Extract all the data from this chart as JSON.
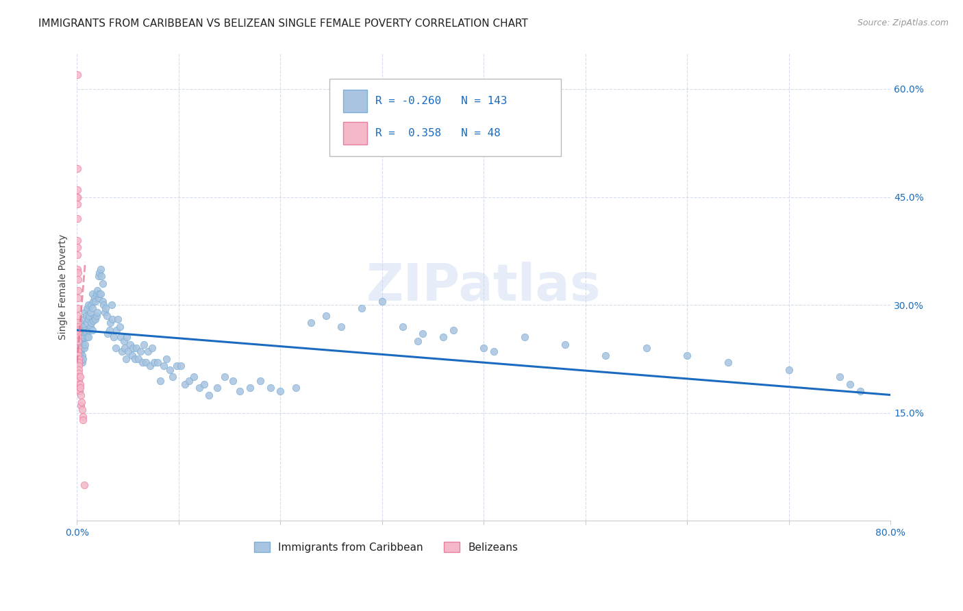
{
  "title": "IMMIGRANTS FROM CARIBBEAN VS BELIZEAN SINGLE FEMALE POVERTY CORRELATION CHART",
  "source": "Source: ZipAtlas.com",
  "ylabel": "Single Female Poverty",
  "legend_label1": "Immigrants from Caribbean",
  "legend_label2": "Belizeans",
  "watermark": "ZIPatlas",
  "r_blue": -0.26,
  "n_blue": 143,
  "r_pink": 0.358,
  "n_pink": 48,
  "blue_scatter_x": [
    0.001,
    0.001,
    0.002,
    0.002,
    0.002,
    0.003,
    0.003,
    0.003,
    0.004,
    0.004,
    0.004,
    0.004,
    0.005,
    0.005,
    0.005,
    0.005,
    0.005,
    0.006,
    0.006,
    0.006,
    0.006,
    0.007,
    0.007,
    0.007,
    0.008,
    0.008,
    0.008,
    0.009,
    0.009,
    0.01,
    0.01,
    0.01,
    0.011,
    0.011,
    0.011,
    0.012,
    0.012,
    0.013,
    0.013,
    0.014,
    0.014,
    0.015,
    0.015,
    0.015,
    0.016,
    0.016,
    0.017,
    0.017,
    0.018,
    0.018,
    0.019,
    0.019,
    0.02,
    0.02,
    0.021,
    0.021,
    0.022,
    0.022,
    0.023,
    0.023,
    0.024,
    0.025,
    0.025,
    0.026,
    0.027,
    0.028,
    0.029,
    0.03,
    0.032,
    0.033,
    0.034,
    0.035,
    0.036,
    0.038,
    0.039,
    0.04,
    0.042,
    0.043,
    0.044,
    0.046,
    0.047,
    0.048,
    0.049,
    0.05,
    0.052,
    0.054,
    0.055,
    0.057,
    0.058,
    0.06,
    0.062,
    0.064,
    0.066,
    0.068,
    0.07,
    0.072,
    0.074,
    0.076,
    0.079,
    0.082,
    0.085,
    0.088,
    0.091,
    0.094,
    0.098,
    0.102,
    0.106,
    0.11,
    0.115,
    0.12,
    0.125,
    0.13,
    0.138,
    0.145,
    0.153,
    0.16,
    0.17,
    0.18,
    0.19,
    0.2,
    0.215,
    0.23,
    0.245,
    0.26,
    0.28,
    0.3,
    0.32,
    0.34,
    0.36,
    0.4,
    0.44,
    0.48,
    0.52,
    0.56,
    0.6,
    0.64,
    0.7,
    0.75,
    0.76,
    0.77,
    0.335,
    0.37,
    0.41
  ],
  "blue_scatter_y": [
    0.248,
    0.238,
    0.26,
    0.27,
    0.252,
    0.23,
    0.24,
    0.22,
    0.275,
    0.265,
    0.245,
    0.235,
    0.265,
    0.25,
    0.24,
    0.23,
    0.22,
    0.27,
    0.255,
    0.245,
    0.225,
    0.28,
    0.262,
    0.24,
    0.29,
    0.265,
    0.245,
    0.285,
    0.262,
    0.295,
    0.275,
    0.255,
    0.3,
    0.28,
    0.255,
    0.285,
    0.265,
    0.29,
    0.27,
    0.3,
    0.275,
    0.315,
    0.295,
    0.265,
    0.305,
    0.278,
    0.31,
    0.282,
    0.305,
    0.28,
    0.315,
    0.285,
    0.32,
    0.29,
    0.34,
    0.31,
    0.345,
    0.315,
    0.35,
    0.315,
    0.34,
    0.33,
    0.305,
    0.3,
    0.29,
    0.295,
    0.285,
    0.26,
    0.265,
    0.275,
    0.3,
    0.28,
    0.255,
    0.24,
    0.265,
    0.28,
    0.27,
    0.255,
    0.235,
    0.25,
    0.24,
    0.225,
    0.255,
    0.235,
    0.245,
    0.23,
    0.24,
    0.225,
    0.24,
    0.225,
    0.235,
    0.22,
    0.245,
    0.22,
    0.235,
    0.215,
    0.24,
    0.22,
    0.22,
    0.195,
    0.215,
    0.225,
    0.21,
    0.2,
    0.215,
    0.215,
    0.19,
    0.195,
    0.2,
    0.185,
    0.19,
    0.175,
    0.185,
    0.2,
    0.195,
    0.18,
    0.185,
    0.195,
    0.185,
    0.18,
    0.185,
    0.275,
    0.285,
    0.27,
    0.295,
    0.305,
    0.27,
    0.26,
    0.255,
    0.24,
    0.255,
    0.245,
    0.23,
    0.24,
    0.23,
    0.22,
    0.21,
    0.2,
    0.19,
    0.18,
    0.25,
    0.265,
    0.235
  ],
  "pink_scatter_x": [
    0.0002,
    0.0002,
    0.0003,
    0.0003,
    0.0004,
    0.0004,
    0.0005,
    0.0005,
    0.0006,
    0.0006,
    0.0006,
    0.0007,
    0.0007,
    0.0007,
    0.0008,
    0.0008,
    0.0009,
    0.0009,
    0.001,
    0.001,
    0.0011,
    0.0011,
    0.0012,
    0.0012,
    0.0013,
    0.0013,
    0.0014,
    0.0015,
    0.0015,
    0.0016,
    0.0017,
    0.0018,
    0.0019,
    0.002,
    0.0021,
    0.0022,
    0.0023,
    0.0025,
    0.0027,
    0.003,
    0.0033,
    0.0036,
    0.004,
    0.0045,
    0.005,
    0.0055,
    0.006,
    0.007
  ],
  "pink_scatter_y": [
    0.62,
    0.49,
    0.46,
    0.45,
    0.45,
    0.44,
    0.42,
    0.39,
    0.38,
    0.37,
    0.35,
    0.345,
    0.335,
    0.32,
    0.31,
    0.295,
    0.285,
    0.275,
    0.27,
    0.265,
    0.26,
    0.255,
    0.25,
    0.24,
    0.235,
    0.23,
    0.225,
    0.22,
    0.215,
    0.21,
    0.205,
    0.2,
    0.195,
    0.19,
    0.185,
    0.18,
    0.185,
    0.18,
    0.19,
    0.2,
    0.185,
    0.175,
    0.16,
    0.165,
    0.155,
    0.145,
    0.14,
    0.05
  ],
  "blue_line_x": [
    0.0,
    0.8
  ],
  "blue_line_y": [
    0.265,
    0.175
  ],
  "pink_line_x": [
    0.0,
    0.008
  ],
  "pink_line_y": [
    0.22,
    0.36
  ],
  "xlim": [
    0.0,
    0.8
  ],
  "ylim": [
    0.0,
    0.65
  ],
  "scatter_size": 55,
  "blue_color": "#a8c4e0",
  "blue_edge": "#7bafd4",
  "pink_color": "#f4b8c8",
  "pink_edge": "#e87fa0",
  "blue_line_color": "#1a6bbf",
  "pink_line_color": "#e07090",
  "grid_color": "#d0d8e8",
  "background_color": "#ffffff",
  "title_fontsize": 11,
  "axis_label_fontsize": 10,
  "tick_fontsize": 10,
  "legend_fontsize": 11,
  "source_fontsize": 9
}
